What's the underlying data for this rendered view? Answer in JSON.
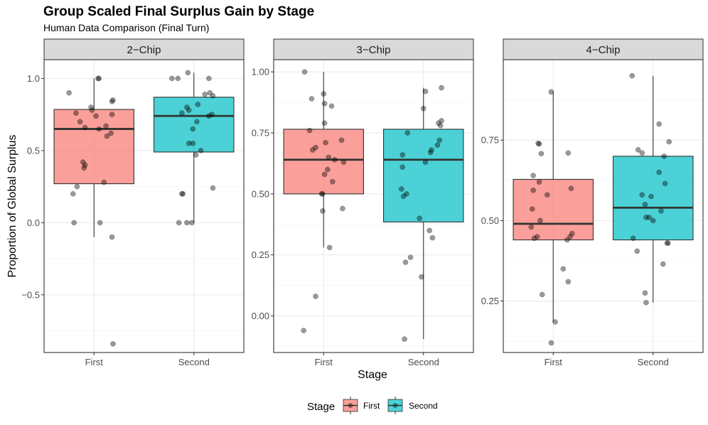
{
  "chart_data": {
    "type": "boxplot",
    "title": "Group Scaled Final Surplus Gain by Stage",
    "subtitle": "Human Data Comparison (Final Turn)",
    "xlabel": "Stage",
    "ylabel": "Proportion of Global Surplus",
    "categories": [
      "First",
      "Second"
    ],
    "colors": {
      "First": "#F8766D",
      "Second": "#00BFC4"
    },
    "legend": {
      "title": "Stage",
      "position": "bottom",
      "entries": [
        {
          "label": "First",
          "color": "#F8766D"
        },
        {
          "label": "Second",
          "color": "#00BFC4"
        }
      ]
    },
    "facets": [
      {
        "label": "2−Chip",
        "ylim": [
          -0.9,
          1.13
        ],
        "yticks": [
          -0.5,
          0.0,
          0.5,
          1.0
        ],
        "ytick_labels": [
          "−0.5",
          "0.0",
          "0.5",
          "1.0"
        ],
        "boxes": [
          {
            "stage": "First",
            "q1": 0.27,
            "median": 0.65,
            "q3": 0.785,
            "whisker_low": -0.1,
            "whisker_high": 1.0,
            "points": [
              1.0,
              1.0,
              0.9,
              0.85,
              0.84,
              0.8,
              0.78,
              0.76,
              0.75,
              0.74,
              0.7,
              0.67,
              0.66,
              0.65,
              0.62,
              0.6,
              0.42,
              0.4,
              0.38,
              0.28,
              0.25,
              0.2,
              0.0,
              0.0,
              -0.1,
              -0.84
            ],
            "jitter": [
              0.05,
              0.04,
              -0.25,
              0.19,
              0.18,
              -0.03,
              -0.02,
              -0.18,
              0.18,
              0.02,
              -0.14,
              0.12,
              -0.09,
              0.05,
              0.17,
              0.13,
              -0.11,
              -0.09,
              -0.1,
              0.1,
              -0.17,
              -0.21,
              -0.2,
              0.06,
              0.18,
              0.19
            ]
          },
          {
            "stage": "Second",
            "q1": 0.49,
            "median": 0.74,
            "q3": 0.87,
            "whisker_low": 0.0,
            "whisker_high": 1.04,
            "points": [
              1.04,
              1.0,
              1.0,
              1.0,
              0.9,
              0.89,
              0.88,
              0.82,
              0.8,
              0.78,
              0.76,
              0.75,
              0.74,
              0.7,
              0.65,
              0.55,
              0.55,
              0.5,
              0.47,
              0.24,
              0.2,
              0.2,
              0.0,
              0.0,
              0.0
            ],
            "jitter": [
              -0.06,
              -0.22,
              -0.16,
              0.15,
              0.16,
              0.11,
              0.19,
              0.04,
              -0.07,
              -0.05,
              -0.12,
              0.18,
              0.15,
              0.03,
              -0.01,
              -0.05,
              -0.01,
              0.07,
              0.02,
              0.19,
              -0.12,
              -0.11,
              -0.15,
              -0.07,
              -0.02
            ]
          }
        ]
      },
      {
        "label": "3−Chip",
        "ylim": [
          -0.15,
          1.05
        ],
        "yticks": [
          0.0,
          0.25,
          0.5,
          0.75,
          1.0
        ],
        "ytick_labels": [
          "0.00",
          "0.25",
          "0.50",
          "0.75",
          "1.00"
        ],
        "boxes": [
          {
            "stage": "First",
            "q1": 0.5,
            "median": 0.64,
            "q3": 0.765,
            "whisker_low": 0.28,
            "whisker_high": 1.0,
            "points": [
              1.0,
              0.91,
              0.89,
              0.87,
              0.86,
              0.79,
              0.76,
              0.72,
              0.71,
              0.69,
              0.68,
              0.65,
              0.64,
              0.63,
              0.6,
              0.58,
              0.55,
              0.5,
              0.5,
              0.43,
              0.44,
              0.28,
              0.08,
              -0.06
            ],
            "jitter": [
              -0.19,
              0.0,
              -0.12,
              0.01,
              0.08,
              0.01,
              -0.14,
              0.18,
              0.02,
              -0.08,
              -0.11,
              0.05,
              0.11,
              0.2,
              0.04,
              0.01,
              0.09,
              -0.02,
              -0.01,
              -0.01,
              0.19,
              0.06,
              -0.08,
              -0.2
            ]
          },
          {
            "stage": "Second",
            "q1": 0.385,
            "median": 0.64,
            "q3": 0.765,
            "whisker_low": -0.095,
            "whisker_high": 0.935,
            "points": [
              0.935,
              0.92,
              0.85,
              0.8,
              0.79,
              0.78,
              0.75,
              0.72,
              0.7,
              0.68,
              0.67,
              0.66,
              0.63,
              0.61,
              0.52,
              0.5,
              0.49,
              0.4,
              0.35,
              0.32,
              0.24,
              0.22,
              0.16,
              -0.095
            ],
            "jitter": [
              0.18,
              0.02,
              0.0,
              0.18,
              0.15,
              0.17,
              -0.16,
              0.16,
              0.14,
              0.08,
              0.07,
              -0.21,
              0.02,
              -0.21,
              -0.22,
              -0.17,
              -0.2,
              -0.04,
              0.06,
              0.09,
              -0.13,
              -0.18,
              -0.02,
              -0.19
            ]
          }
        ]
      },
      {
        "label": "4−Chip",
        "ylim": [
          0.09,
          1.0
        ],
        "yticks": [
          0.25,
          0.5,
          0.75
        ],
        "ytick_labels": [
          "0.25",
          "0.50",
          "0.75"
        ],
        "boxes": [
          {
            "stage": "First",
            "q1": 0.44,
            "median": 0.49,
            "q3": 0.628,
            "whisker_low": 0.185,
            "whisker_high": 0.9,
            "points": [
              0.9,
              0.74,
              0.738,
              0.71,
              0.708,
              0.64,
              0.62,
              0.6,
              0.594,
              0.58,
              0.536,
              0.5,
              0.48,
              0.46,
              0.45,
              0.45,
              0.445,
              0.44,
              0.35,
              0.31,
              0.27,
              0.185,
              0.12
            ],
            "jitter": [
              -0.02,
              -0.15,
              -0.14,
              0.15,
              -0.12,
              -0.2,
              -0.14,
              0.18,
              -0.2,
              -0.06,
              -0.21,
              -0.13,
              -0.22,
              0.19,
              -0.16,
              0.17,
              -0.19,
              0.14,
              0.1,
              0.15,
              -0.11,
              0.02,
              -0.02
            ]
          },
          {
            "stage": "Second",
            "q1": 0.44,
            "median": 0.54,
            "q3": 0.7,
            "whisker_low": 0.245,
            "whisker_high": 0.95,
            "points": [
              0.95,
              0.8,
              0.745,
              0.72,
              0.71,
              0.7,
              0.65,
              0.615,
              0.58,
              0.575,
              0.55,
              0.53,
              0.51,
              0.51,
              0.5,
              0.445,
              0.43,
              0.43,
              0.405,
              0.365,
              0.275,
              0.245
            ],
            "jitter": [
              -0.21,
              0.06,
              0.16,
              -0.15,
              -0.11,
              0.11,
              0.06,
              0.12,
              -0.11,
              -0.02,
              -0.08,
              0.08,
              -0.04,
              -0.07,
              0.0,
              -0.2,
              0.14,
              0.15,
              -0.16,
              0.1,
              -0.08,
              -0.07
            ]
          }
        ]
      }
    ]
  }
}
